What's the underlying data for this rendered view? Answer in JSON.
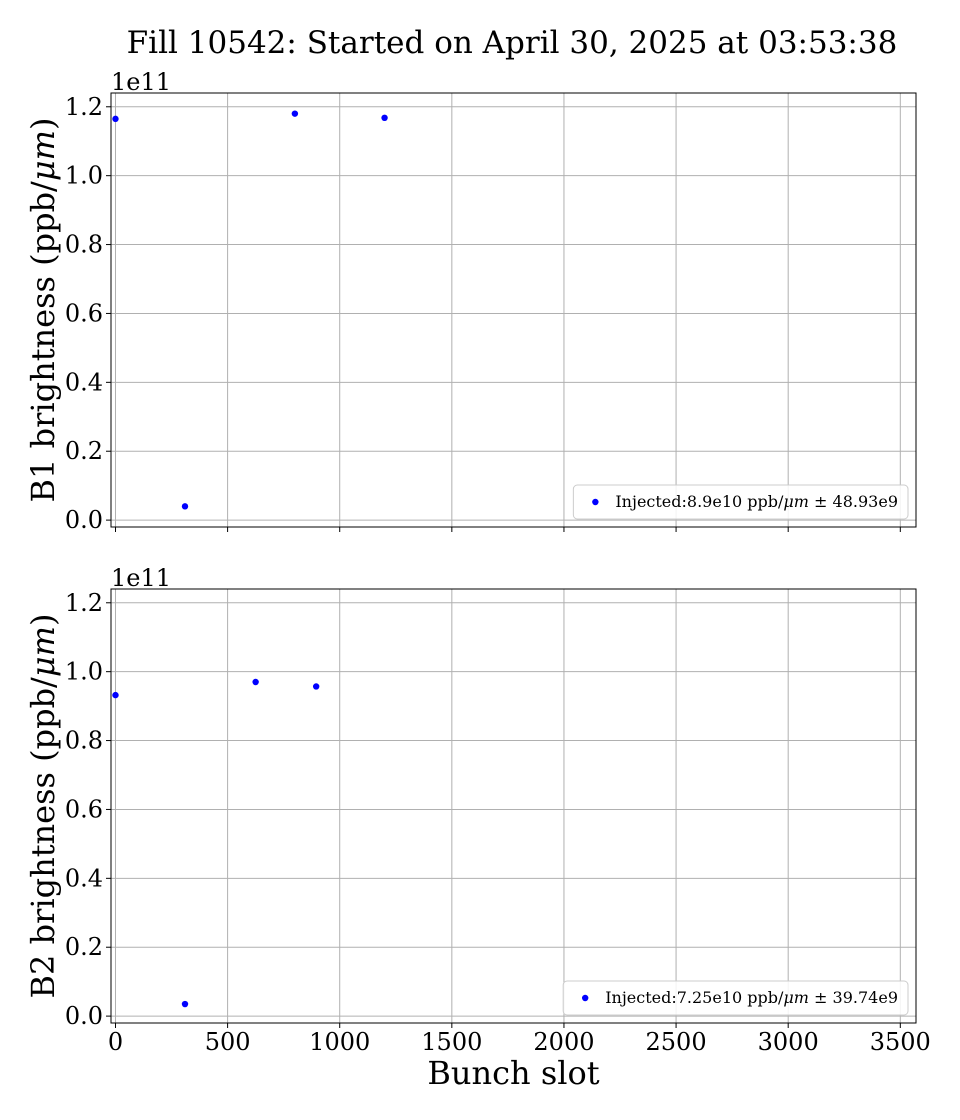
{
  "figure": {
    "title": "Fill 10542: Started on April 30, 2025 at 03:53:38"
  },
  "colors": {
    "marker": "#0000ff",
    "grid": "#b0b0b0",
    "axis": "#000000"
  },
  "chart_data": [
    {
      "type": "scatter",
      "panel": "top",
      "ylabel": "B1 brightness (ppb/μm)",
      "xlabel": "",
      "offset_label": "1e11",
      "xlim": [
        -20,
        3570
      ],
      "ylim": [
        -0.02,
        1.24
      ],
      "y_scale": "1e11",
      "xticks": [
        0,
        500,
        1000,
        1500,
        2000,
        2500,
        3000,
        3500
      ],
      "yticks": [
        0.0,
        0.2,
        0.4,
        0.6,
        0.8,
        1.0,
        1.2
      ],
      "ytick_labels": [
        "0.0",
        "0.2",
        "0.4",
        "0.6",
        "0.8",
        "1.0",
        "1.2"
      ],
      "show_xtick_labels": false,
      "grid": true,
      "legend_position": "lower-right",
      "series": [
        {
          "name": "Injected:8.9e10 ppb/μm ± 48.93e9",
          "x": [
            0,
            310,
            800,
            1200
          ],
          "y": [
            1.165,
            0.04,
            1.18,
            1.168
          ]
        }
      ]
    },
    {
      "type": "scatter",
      "panel": "bottom",
      "ylabel": "B2 brightness (ppb/μm)",
      "xlabel": "Bunch slot",
      "offset_label": "1e11",
      "xlim": [
        -20,
        3570
      ],
      "ylim": [
        -0.02,
        1.24
      ],
      "y_scale": "1e11",
      "xticks": [
        0,
        500,
        1000,
        1500,
        2000,
        2500,
        3000,
        3500
      ],
      "xtick_labels": [
        "0",
        "500",
        "1000",
        "1500",
        "2000",
        "2500",
        "3000",
        "3500"
      ],
      "yticks": [
        0.0,
        0.2,
        0.4,
        0.6,
        0.8,
        1.0,
        1.2
      ],
      "ytick_labels": [
        "0.0",
        "0.2",
        "0.4",
        "0.6",
        "0.8",
        "1.0",
        "1.2"
      ],
      "show_xtick_labels": true,
      "grid": true,
      "legend_position": "lower-right",
      "series": [
        {
          "name": "Injected:7.25e10 ppb/μm ± 39.74e9",
          "x": [
            0,
            310,
            625,
            895
          ],
          "y": [
            0.932,
            0.035,
            0.97,
            0.957
          ]
        }
      ]
    }
  ]
}
